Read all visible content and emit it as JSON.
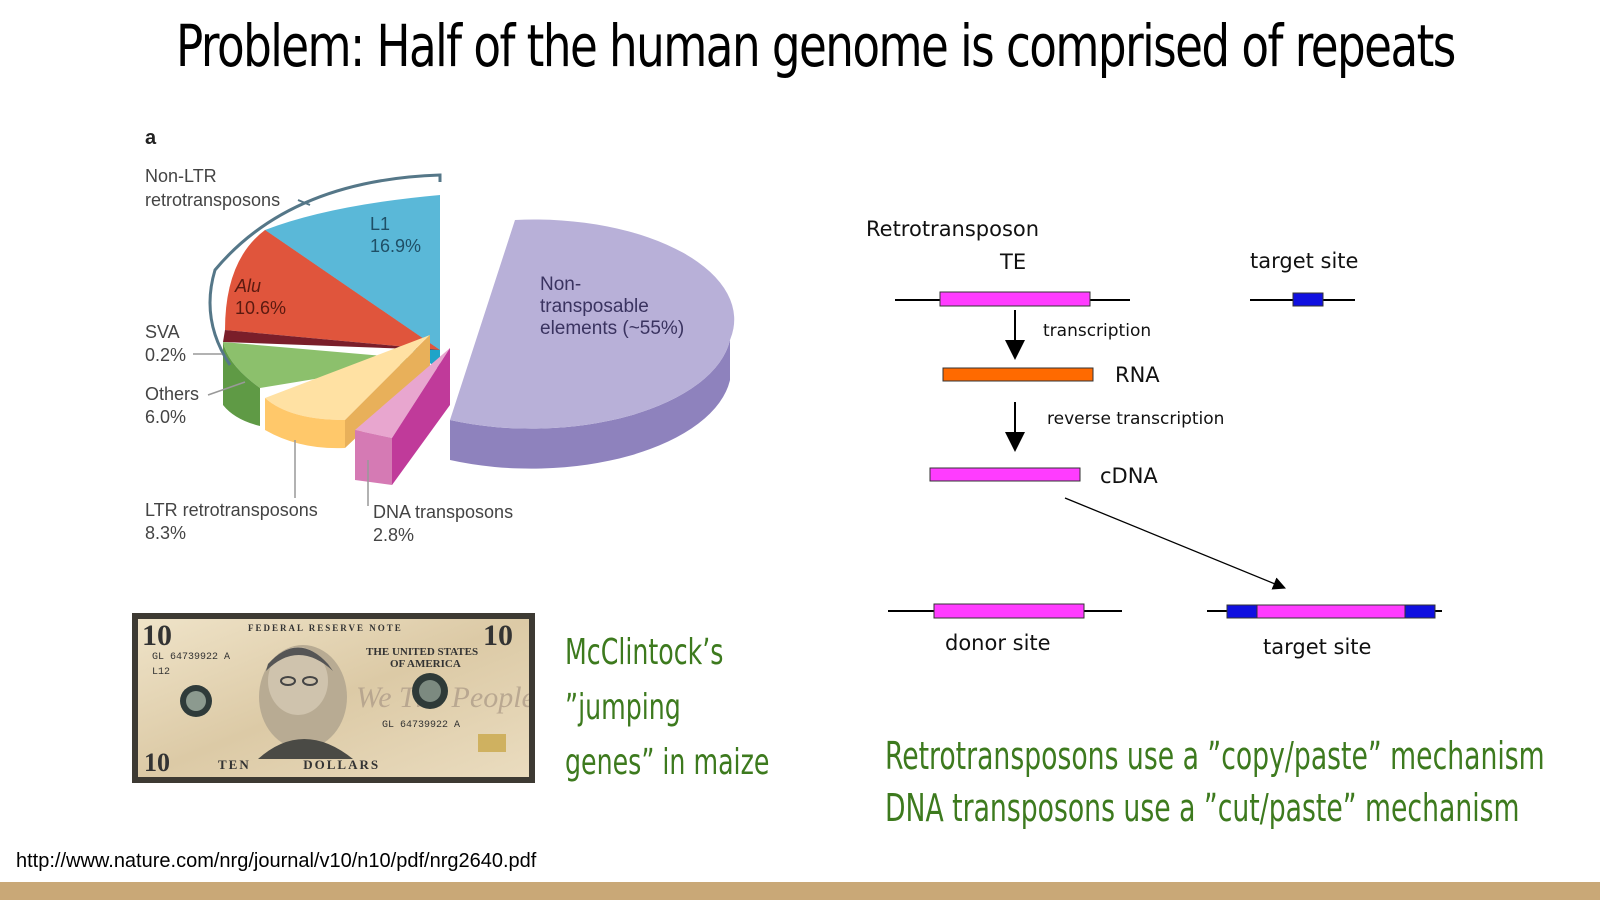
{
  "slide": {
    "title": "Problem: Half of the human genome is comprised of repeats",
    "source_url": "http://www.nature.com/nrg/journal/v10/n10/pdf/nrg2640.pdf",
    "footer_color": "#c9a877"
  },
  "chart_data": {
    "type": "pie",
    "panel_label": "a",
    "slices": [
      {
        "name_lines": [
          "L1"
        ],
        "value": 16.9,
        "value_label": "16.9%",
        "color": "#5ab8d8"
      },
      {
        "name_lines": [
          "Alu"
        ],
        "value": 10.6,
        "value_label": "10.6%",
        "color": "#e0553c"
      },
      {
        "name_lines": [
          "SVA"
        ],
        "value": 0.2,
        "value_label": "0.2%",
        "color": "#7a1e2a"
      },
      {
        "name_lines": [
          "Others"
        ],
        "value": 6.0,
        "value_label": "6.0%",
        "color": "#8cc06c"
      },
      {
        "name_lines": [
          "LTR retrotransposons"
        ],
        "value": 8.3,
        "value_label": "8.3%",
        "color": "#ffd07a"
      },
      {
        "name_lines": [
          "DNA transposons"
        ],
        "value": 2.8,
        "value_label": "2.8%",
        "color": "#d57ab4"
      },
      {
        "name_lines": [
          "Non-",
          "transposable",
          "elements (~55%)"
        ],
        "value": 55,
        "value_label": "",
        "color": "#b8b0d8"
      }
    ],
    "group_label_lines": [
      "Non-LTR",
      "retrotransposons"
    ]
  },
  "bill": {
    "top_left_denomination": "10",
    "top_right_denomination": "10",
    "header": "FEDERAL RESERVE NOTE",
    "serial": "GL 64739922 A",
    "district": "L12",
    "country_lines": [
      "THE UNITED STATES",
      "OF AMERICA"
    ],
    "motto": "We The People",
    "bottom_left": "10",
    "bottom_text": "TEN          DOLLARS"
  },
  "mcclintock_caption": [
    "McClintock’s",
    "”jumping",
    "genes” in maize"
  ],
  "diagram": {
    "title": "Retrotransposon",
    "te_label": "TE",
    "target_site_label": "target site",
    "transcription_label": "transcription",
    "rna_label": "RNA",
    "reverse_transcription_label": "reverse transcription",
    "cdna_label": "cDNA",
    "donor_site_label": "donor site",
    "target_site_bottom_label": "target site",
    "colors": {
      "element": "#ff3cff",
      "rna": "#ff6a00",
      "target": "#1010e0"
    }
  },
  "mechanism_captions": [
    "Retrotransposons use a ”copy/paste” mechanism",
    "DNA transposons use a ”cut/paste” mechanism"
  ]
}
